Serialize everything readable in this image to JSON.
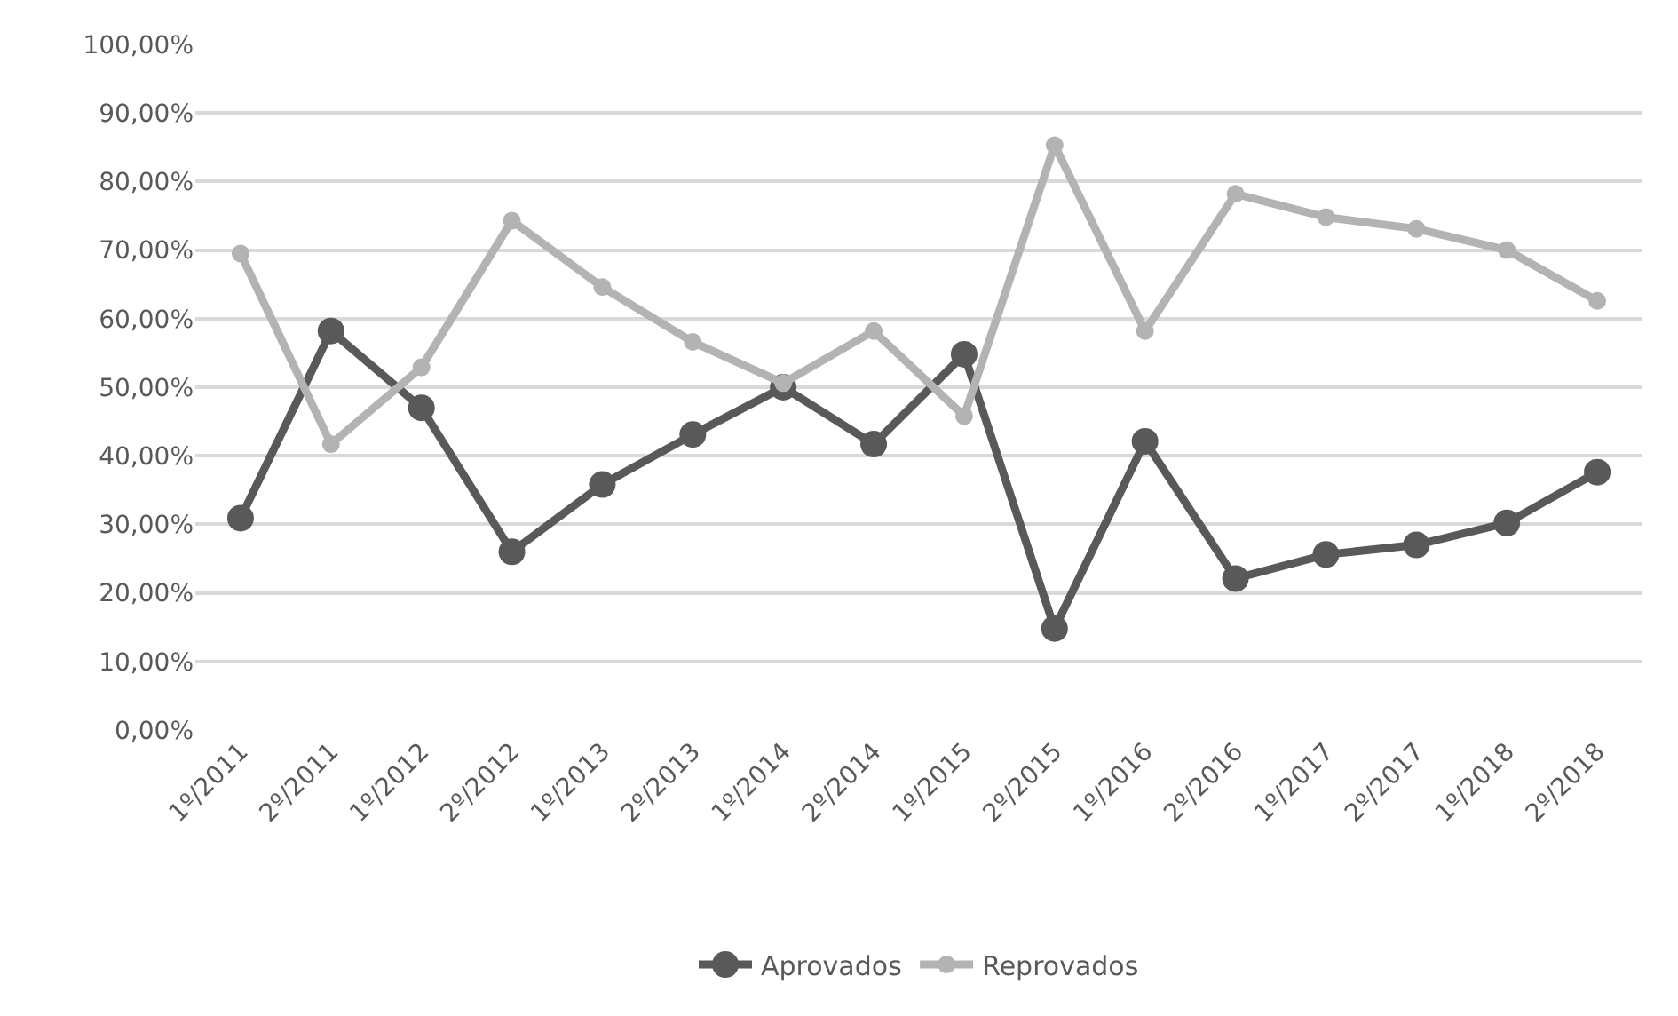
{
  "chart_data": {
    "type": "line",
    "categories": [
      "1º/2011",
      "2º/2011",
      "1º/2012",
      "2º/2012",
      "1º/2013",
      "2º/2013",
      "1º/2014",
      "2º/2014",
      "1º/2015",
      "2º/2015",
      "1º/2016",
      "2º/2016",
      "1º/2017",
      "2º/2017",
      "1º/2018",
      "2º/2018"
    ],
    "series": [
      {
        "name": "Aprovados",
        "color": "#595959",
        "values": [
          30.9,
          58.2,
          47.0,
          26.0,
          35.8,
          43.1,
          50.0,
          41.7,
          54.8,
          14.8,
          42.1,
          22.1,
          25.6,
          27.0,
          30.2,
          37.6
        ]
      },
      {
        "name": "Reprovados",
        "color": "#b3b3b3",
        "values": [
          69.5,
          41.7,
          52.9,
          74.3,
          64.6,
          56.6,
          50.6,
          58.2,
          45.8,
          85.3,
          58.2,
          78.2,
          74.8,
          73.1,
          70.0,
          62.6
        ]
      }
    ],
    "ylim": [
      0,
      100
    ],
    "yticks": [
      {
        "value": 0,
        "label": "0,00%"
      },
      {
        "value": 10,
        "label": "10,00%"
      },
      {
        "value": 20,
        "label": "20,00%"
      },
      {
        "value": 30,
        "label": "30,00%"
      },
      {
        "value": 40,
        "label": "40,00%"
      },
      {
        "value": 50,
        "label": "50,00%"
      },
      {
        "value": 60,
        "label": "60,00%"
      },
      {
        "value": 70,
        "label": "70,00%"
      },
      {
        "value": 80,
        "label": "80,00%"
      },
      {
        "value": 90,
        "label": "90,00%"
      },
      {
        "value": 100,
        "label": "100,00%"
      }
    ],
    "grid": "y",
    "legend": "bottom",
    "marker": "circle",
    "line_style": "solid"
  }
}
